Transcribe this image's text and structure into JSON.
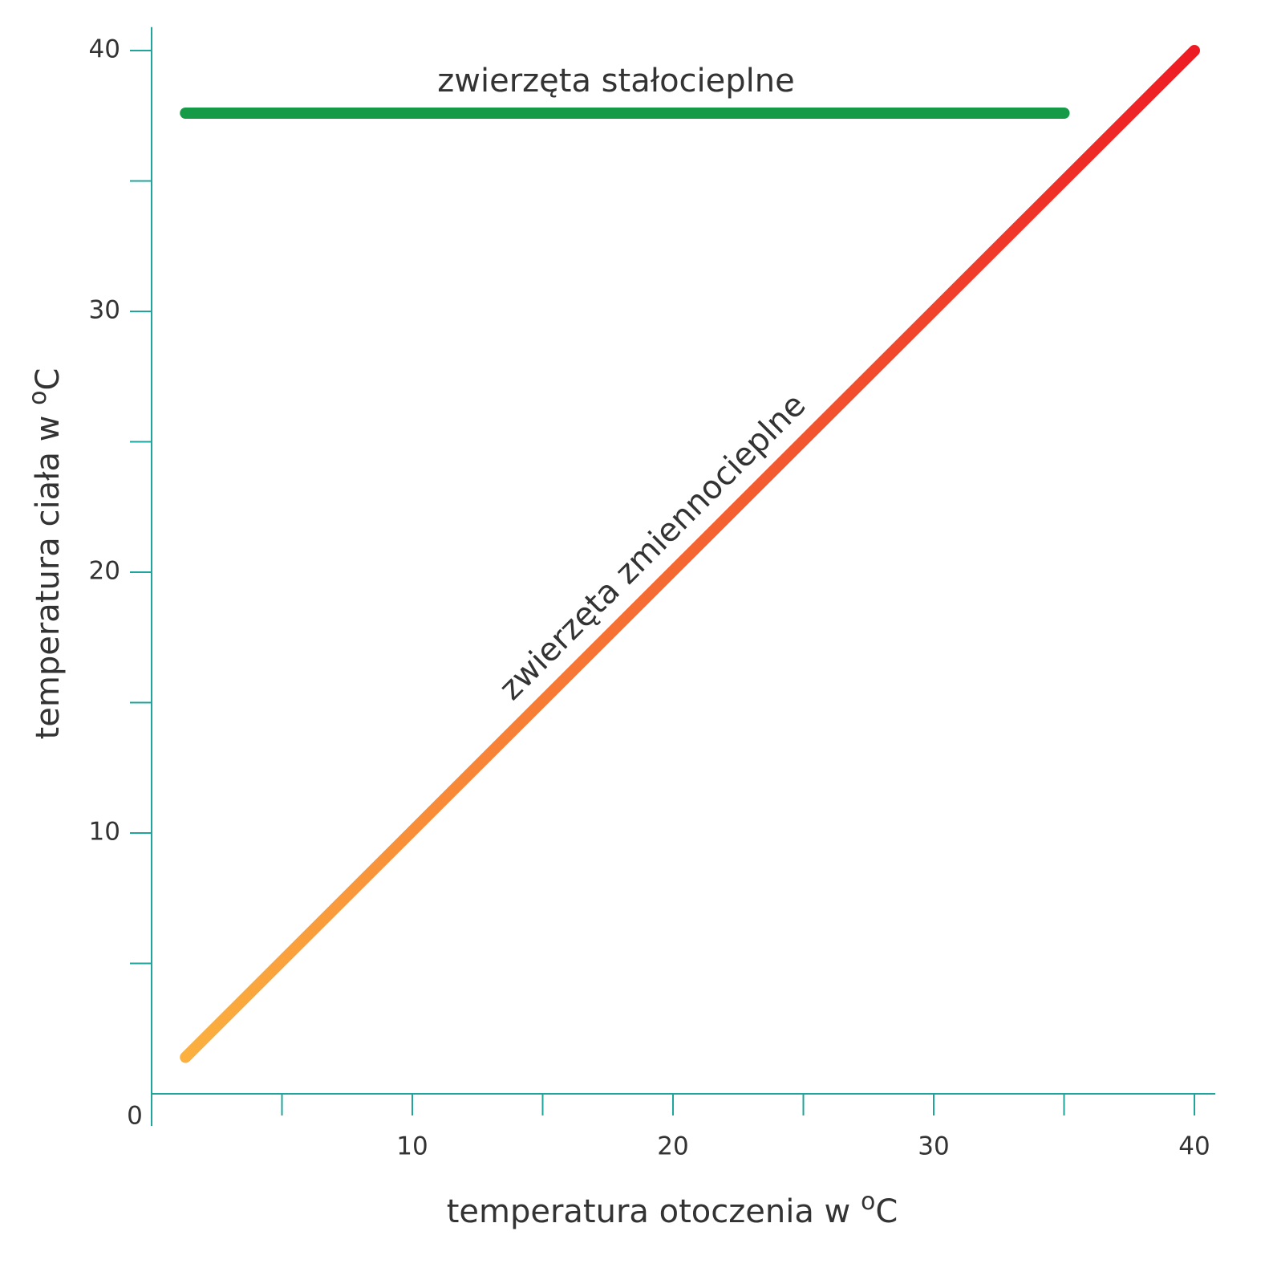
{
  "chart_data": {
    "type": "line",
    "x_label": {
      "text": "temperatura otoczenia w",
      "sup": "o",
      "unit": "C"
    },
    "y_label": {
      "text": "temperatura ciała w",
      "sup": "o",
      "unit": "C"
    },
    "xlim": [
      0,
      40.8
    ],
    "ylim": [
      0,
      40.9
    ],
    "xticks": [
      10,
      20,
      30,
      40
    ],
    "yticks": [
      10,
      20,
      30,
      40
    ],
    "minor_xticks": [
      5,
      15,
      25,
      35
    ],
    "minor_yticks": [
      5,
      15,
      25,
      35
    ],
    "origin_tick": 0,
    "axis_color": "#1fa59b",
    "grid": false,
    "series": [
      {
        "name": "zwierzęta stałocieplne",
        "color": "#159a48",
        "x": [
          1.3,
          35
        ],
        "values": [
          37.6,
          37.6
        ]
      },
      {
        "name": "zwierzęta zmiennocieplne",
        "color": "#f7931e",
        "gradient": [
          "#fbb040",
          "#ed1c24"
        ],
        "x": [
          1.3,
          40
        ],
        "values": [
          1.4,
          40
        ]
      }
    ]
  }
}
